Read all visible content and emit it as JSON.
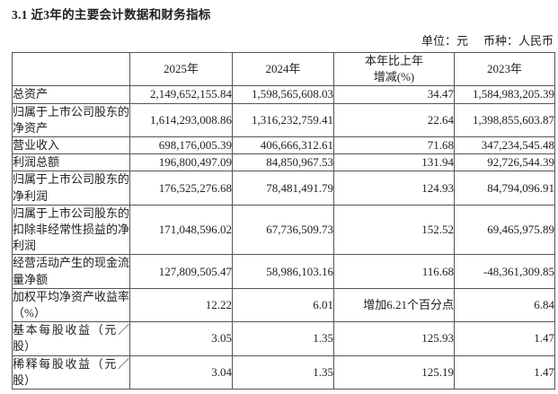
{
  "page": {
    "title": "3.1 近3年的主要会计数据和财务指标",
    "unit_label": "单位：元",
    "currency_label": "币种：人民币"
  },
  "table": {
    "header": {
      "col_label": "",
      "col_2025": "2025年",
      "col_2024": "2024年",
      "col_change_line1": "本年比上年",
      "col_change_line2": "增减(%)",
      "col_2023": "2023年"
    },
    "rows": [
      {
        "label": "总资产",
        "y2025": "2,149,652,155.84",
        "y2024": "1,598,565,608.03",
        "change": "34.47",
        "y2023": "1,584,983,205.39"
      },
      {
        "label": "归属于上市公司股东的净资产",
        "y2025": "1,614,293,008.86",
        "y2024": "1,316,232,759.41",
        "change": "22.64",
        "y2023": "1,398,855,603.87"
      },
      {
        "label": "营业收入",
        "y2025": "698,176,005.39",
        "y2024": "406,666,312.61",
        "change": "71.68",
        "y2023": "347,234,545.48"
      },
      {
        "label": "利润总额",
        "y2025": "196,800,497.09",
        "y2024": "84,850,967.53",
        "change": "131.94",
        "y2023": "92,726,544.39"
      },
      {
        "label": "归属于上市公司股东的净利润",
        "y2025": "176,525,276.68",
        "y2024": "78,481,491.79",
        "change": "124.93",
        "y2023": "84,794,096.91"
      },
      {
        "label": "归属于上市公司股东的扣除非经常性损益的净利润",
        "y2025": "171,048,596.02",
        "y2024": "67,736,509.73",
        "change": "152.52",
        "y2023": "69,465,975.89"
      },
      {
        "label": "经营活动产生的现金流量净额",
        "y2025": "127,809,505.47",
        "y2024": "58,986,103.16",
        "change": "116.68",
        "y2023": "-48,361,309.85"
      },
      {
        "label": "加权平均净资产收益率（%）",
        "y2025": "12.22",
        "y2024": "6.01",
        "change": "增加6.21个百分点",
        "y2023": "6.84"
      },
      {
        "label": "基本每股收益（元／股）",
        "y2025": "3.05",
        "y2024": "1.35",
        "change": "125.93",
        "y2023": "1.47"
      },
      {
        "label": "稀释每股收益（元／股）",
        "y2025": "3.04",
        "y2024": "1.35",
        "change": "125.19",
        "y2023": "1.47"
      }
    ]
  }
}
